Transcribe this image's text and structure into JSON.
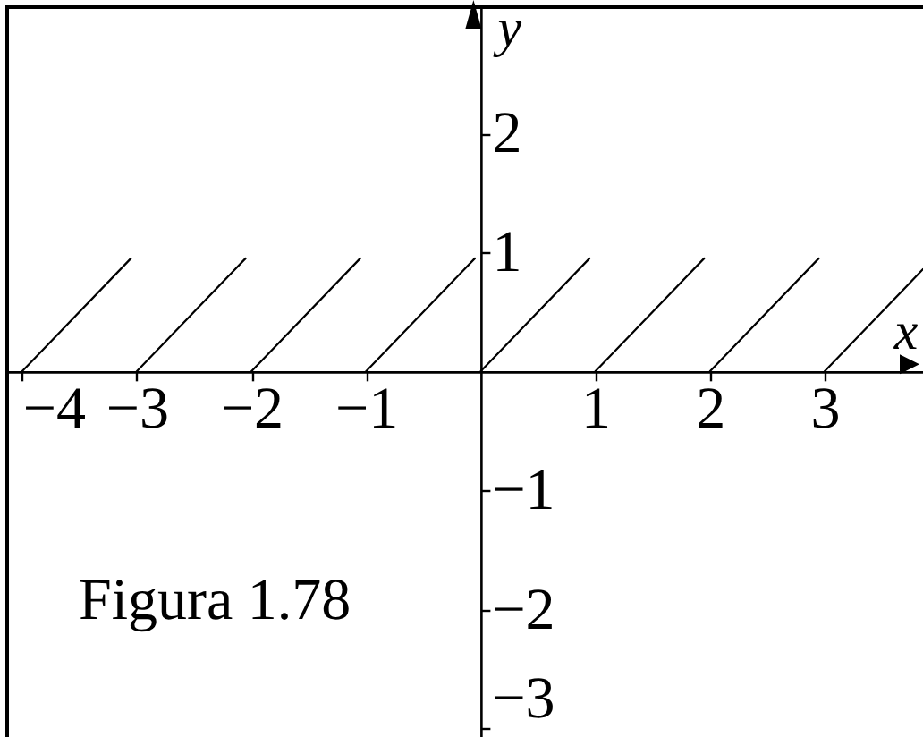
{
  "chart_data": {
    "type": "line",
    "xlabel": "x",
    "ylabel": "y",
    "annotations": [
      "Figura 1.78"
    ],
    "xlim": [
      -4.13,
      3.89
    ],
    "ylim": [
      -3.1,
      3.06
    ],
    "xticks": [
      -4,
      -3,
      -2,
      -1,
      1,
      2,
      3
    ],
    "yticks": [
      -3,
      -2,
      -1,
      1,
      2
    ],
    "series": [
      {
        "color": "#000000",
        "x": [
          -4,
          -3.05
        ],
        "values": [
          0,
          0.95
        ]
      },
      {
        "color": "#000000",
        "x": [
          -3,
          -2.05
        ],
        "values": [
          0,
          0.95
        ]
      },
      {
        "color": "#000000",
        "x": [
          -2,
          -1.05
        ],
        "values": [
          0,
          0.95
        ]
      },
      {
        "color": "#000000",
        "x": [
          -1,
          -0.05
        ],
        "values": [
          0,
          0.95
        ]
      },
      {
        "color": "#000000",
        "x": [
          0,
          0.95
        ],
        "values": [
          0,
          0.95
        ]
      },
      {
        "color": "#000000",
        "x": [
          1,
          1.95
        ],
        "values": [
          0,
          0.95
        ]
      },
      {
        "color": "#000000",
        "x": [
          2,
          2.95
        ],
        "values": [
          0,
          0.95
        ]
      },
      {
        "color": "#000000",
        "x": [
          3,
          3.86
        ],
        "values": [
          0,
          0.86
        ]
      }
    ]
  }
}
